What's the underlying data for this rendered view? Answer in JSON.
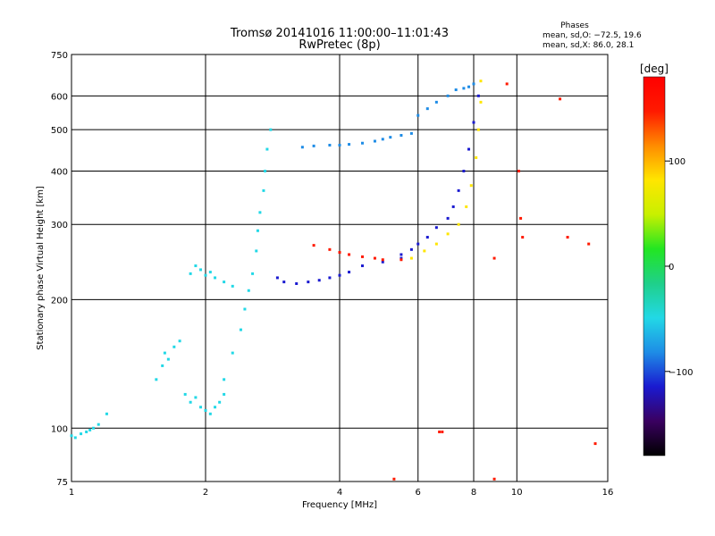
{
  "chart_data": {
    "type": "scatter",
    "title_line1": "Tromsø 20141016 11:00:00–11:01:43",
    "title_line2": "RwPretec (8p)",
    "xlabel": "Frequency [MHz]",
    "ylabel": "Stationary phase Virtual Height [km]",
    "x_scale": "log",
    "y_scale": "log",
    "xlim": [
      1,
      16
    ],
    "ylim": [
      75,
      750
    ],
    "x_ticks": [
      1,
      2,
      4,
      6,
      8,
      10,
      16
    ],
    "y_ticks": [
      75,
      100,
      200,
      300,
      400,
      500,
      600,
      750
    ],
    "x_grid": [
      2,
      4,
      6,
      8,
      10
    ],
    "y_grid": [
      100,
      200,
      300,
      400,
      500,
      600
    ],
    "grid": true,
    "stats": {
      "header": "Phases",
      "line_o": "mean, sd,O: −72.5, 19.6",
      "line_x": "mean, sd,X:  86.0, 28.1"
    },
    "colorbar": {
      "label": "[deg]",
      "min": -180,
      "max": 180,
      "ticks": [
        100,
        0,
        -100
      ],
      "tick_labels": [
        "100",
        "0",
        "−100"
      ],
      "colors": [
        "#000000",
        "#3a0060",
        "#1a1ad0",
        "#1e8ce6",
        "#22d8e6",
        "#1fd08a",
        "#22e622",
        "#c8f000",
        "#ffe600",
        "#ff8c00",
        "#ff1a00",
        "#ff0000"
      ]
    },
    "series": [
      {
        "x": [
          1.0,
          1.02,
          1.05,
          1.08,
          1.1,
          1.12,
          1.15,
          1.2
        ],
        "y": [
          96,
          95,
          97,
          98,
          99,
          100,
          102,
          108
        ],
        "phase": -50
      },
      {
        "x": [
          1.55,
          1.6,
          1.62,
          1.65,
          1.7,
          1.75,
          1.8,
          1.85,
          1.9,
          1.95,
          2.0,
          2.05,
          2.1,
          2.15,
          2.2
        ],
        "y": [
          130,
          140,
          150,
          145,
          155,
          160,
          120,
          115,
          118,
          112,
          110,
          108,
          112,
          115,
          120
        ],
        "phase": -40
      },
      {
        "x": [
          1.85,
          1.9,
          1.95,
          2.0,
          2.05,
          2.1,
          2.2,
          2.3
        ],
        "y": [
          230,
          240,
          235,
          228,
          232,
          225,
          220,
          215
        ],
        "phase": -60
      },
      {
        "x": [
          2.2,
          2.3,
          2.4,
          2.45,
          2.5,
          2.55,
          2.6,
          2.62,
          2.65,
          2.7,
          2.72,
          2.75,
          2.8
        ],
        "y": [
          130,
          150,
          170,
          190,
          210,
          230,
          260,
          290,
          320,
          360,
          400,
          450,
          500
        ],
        "phase": -45
      },
      {
        "x": [
          2.9,
          3.0,
          3.2,
          3.4,
          3.6,
          3.8,
          4.0,
          4.2,
          4.5,
          5.0,
          5.5
        ],
        "y": [
          225,
          220,
          218,
          220,
          222,
          225,
          228,
          232,
          240,
          245,
          250
        ],
        "phase": -100
      },
      {
        "x": [
          3.3,
          3.5,
          3.8,
          4.0,
          4.2,
          4.5,
          4.8,
          5.0,
          5.2,
          5.5,
          5.8
        ],
        "y": [
          455,
          458,
          460,
          460,
          462,
          465,
          470,
          475,
          480,
          485,
          490
        ],
        "phase": -95
      },
      {
        "x": [
          3.5,
          3.8,
          4.0,
          4.2,
          4.5,
          4.8,
          5.0,
          5.5
        ],
        "y": [
          268,
          262,
          258,
          255,
          252,
          250,
          248,
          248
        ],
        "phase": 140
      },
      {
        "x": [
          5.5,
          5.8,
          6.0,
          6.3,
          6.6,
          7.0,
          7.2,
          7.4,
          7.6,
          7.8,
          8.0,
          8.2
        ],
        "y": [
          255,
          262,
          270,
          280,
          295,
          310,
          330,
          360,
          400,
          450,
          520,
          600
        ],
        "phase": -100
      },
      {
        "x": [
          5.8,
          6.2,
          6.6,
          7.0,
          7.4,
          7.7,
          7.9,
          8.1,
          8.2,
          8.3,
          8.3
        ],
        "y": [
          250,
          260,
          270,
          285,
          300,
          330,
          370,
          430,
          500,
          580,
          650
        ],
        "phase": 80
      },
      {
        "x": [
          6.0,
          6.3,
          6.6,
          7.0,
          7.3,
          7.6,
          7.8,
          8.0
        ],
        "y": [
          540,
          560,
          580,
          600,
          620,
          625,
          630,
          640
        ],
        "phase": -95
      },
      {
        "x": [
          6.8,
          8.9,
          9.5,
          10.1,
          10.2,
          10.3,
          12.5,
          13.0,
          14.5,
          15.0,
          6.7,
          5.3,
          8.9
        ],
        "y": [
          98,
          76,
          640,
          400,
          310,
          280,
          590,
          280,
          270,
          92,
          98,
          76,
          250
        ],
        "phase": 150
      }
    ]
  }
}
